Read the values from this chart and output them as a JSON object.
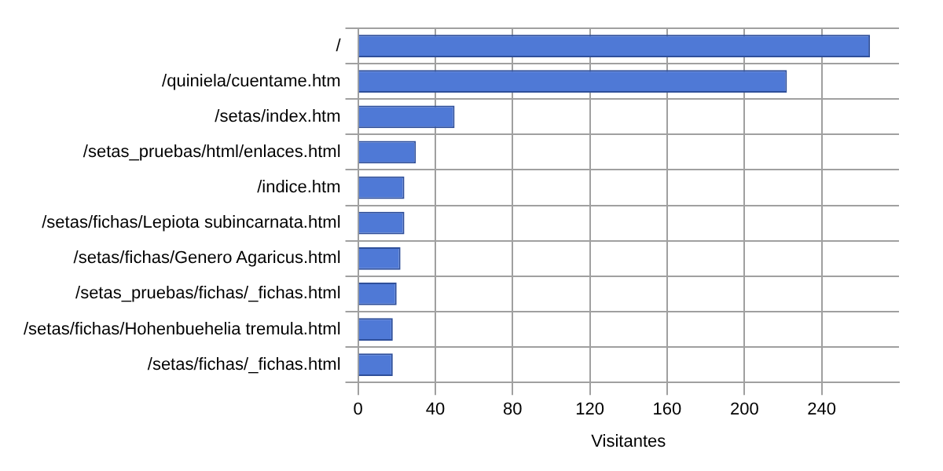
{
  "chart_data": {
    "type": "bar",
    "orientation": "horizontal",
    "xlabel": "Visitantes",
    "categories": [
      "/",
      "/quiniela/cuentame.htm",
      "/setas/index.htm",
      "/setas_pruebas/html/enlaces.html",
      "/indice.htm",
      "/setas/fichas/Lepiota subincarnata.html",
      "/setas/fichas/Genero Agaricus.html",
      "/setas_pruebas/fichas/_fichas.html",
      "/setas/fichas/Hohenbuehelia tremula.html",
      "/setas/fichas/_fichas.html"
    ],
    "values": [
      265,
      222,
      50,
      30,
      24,
      24,
      22,
      20,
      18,
      18
    ],
    "color": "#4f79d6",
    "xlim": [
      0,
      280
    ],
    "xticks": [
      0,
      40,
      80,
      120,
      160,
      200,
      240
    ],
    "grid": true,
    "legend": false
  }
}
